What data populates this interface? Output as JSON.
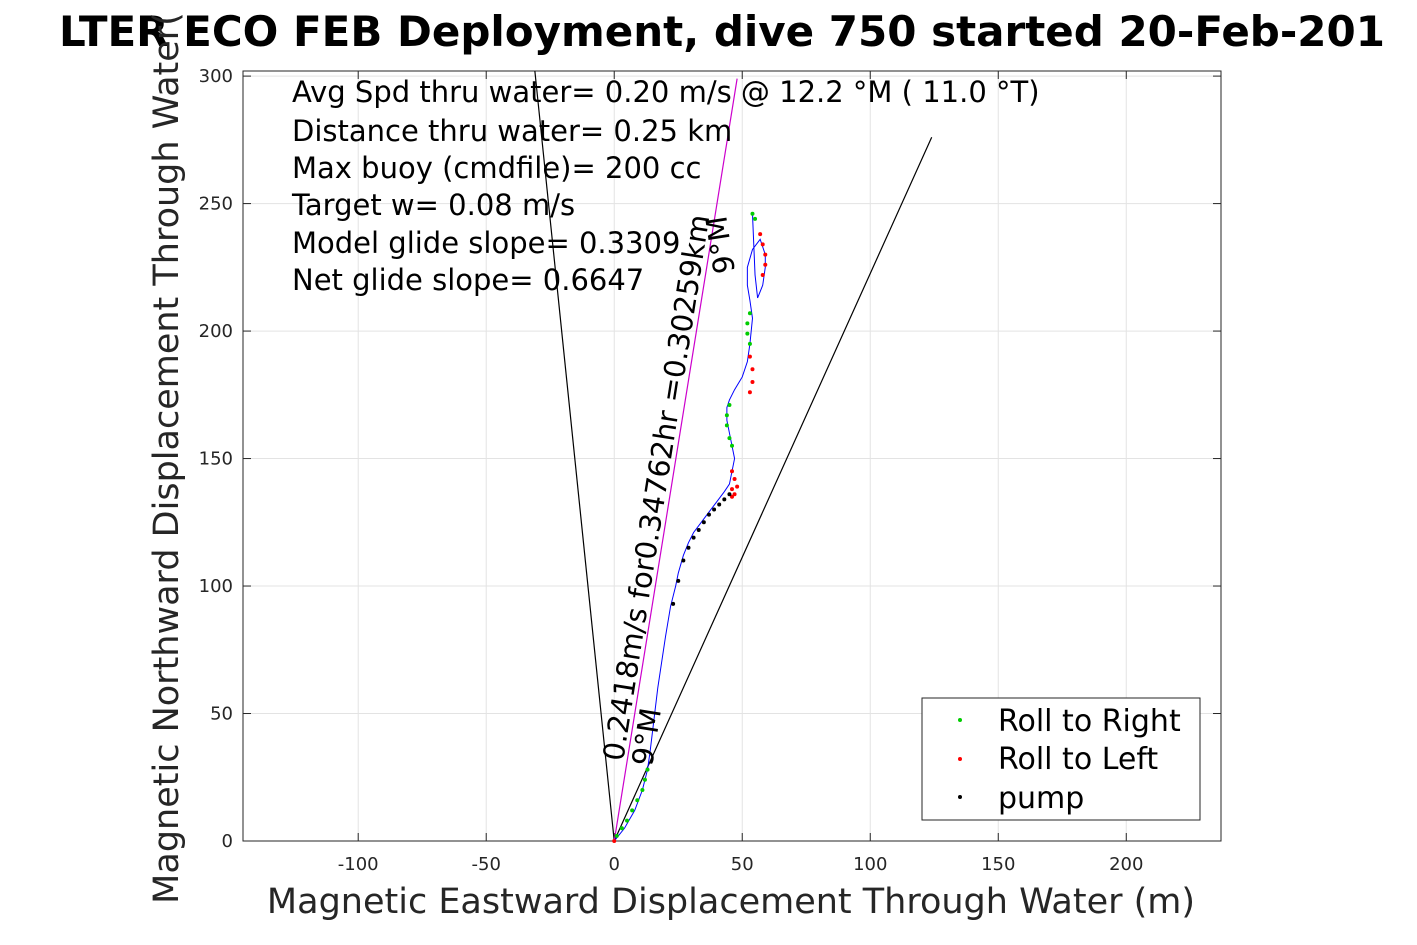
{
  "chart_data": {
    "type": "scatter",
    "title": "LTER ECO FEB Deployment, dive 750 started 20-Feb-201",
    "xlabel": "Magnetic Eastward Displacement Through Water (m)",
    "ylabel": "Magnetic Northward Displacement Through Water(",
    "xlim": [
      -145,
      237
    ],
    "ylim": [
      0,
      302
    ],
    "xticks": [
      -100,
      -50,
      0,
      50,
      100,
      150,
      200
    ],
    "yticks": [
      0,
      50,
      100,
      150,
      200,
      250,
      300
    ],
    "xtick_labels": [
      "-100",
      "-50",
      "0",
      "50",
      "100",
      "150",
      "200"
    ],
    "ytick_labels": [
      "0",
      "50",
      "100",
      "150",
      "200",
      "250",
      "300"
    ],
    "grid": true,
    "annotations": [
      "Avg Spd thru water=  0.20 m/s @  12.2 °M ( 11.0 °T)",
      "Distance thru water=  0.25 km",
      "Max buoy (cmdfile)= 200 cc",
      "Target w= 0.08 m/s",
      "Model glide slope= 0.3309",
      "Net glide slope= 0.6647"
    ],
    "heading_line_labels": [
      "0.2418m/s for0.34762hr =0.30259km",
      "9°M",
      "9°M"
    ],
    "heading_lines": [
      {
        "name": "course",
        "color": "#000000",
        "x": [
          0,
          -31
        ],
        "y": [
          0,
          302
        ]
      },
      {
        "name": "course",
        "color": "#000000",
        "x": [
          0,
          124
        ],
        "y": [
          0,
          276
        ]
      },
      {
        "name": "course",
        "color": "#cc00cc",
        "x": [
          0,
          48
        ],
        "y": [
          0,
          299
        ]
      }
    ],
    "track": {
      "name": "track",
      "color": "#0000ff",
      "x": [
        0,
        4,
        8,
        11,
        13,
        14,
        17,
        20,
        22,
        24,
        25,
        27,
        29,
        31,
        34,
        37,
        40,
        43,
        45,
        46,
        47,
        46,
        45,
        44,
        44,
        45,
        47,
        50,
        52,
        53,
        54,
        53,
        52,
        52,
        54,
        57,
        59,
        59,
        58,
        56,
        55,
        54
      ],
      "y": [
        0,
        5,
        12,
        20,
        28,
        35,
        60,
        80,
        92,
        100,
        105,
        112,
        117,
        121,
        125,
        129,
        133,
        137,
        140,
        145,
        150,
        155,
        160,
        165,
        170,
        173,
        177,
        182,
        188,
        195,
        205,
        212,
        218,
        225,
        232,
        236,
        230,
        225,
        218,
        213,
        222,
        246
      ]
    },
    "series": [
      {
        "name": "Roll to Right",
        "marker": "dot",
        "color": "#00cc00",
        "x": [
          1,
          3,
          5,
          7,
          9,
          11,
          12,
          13,
          45,
          44,
          44,
          45,
          46,
          53,
          52,
          52,
          53,
          54,
          55
        ],
        "y": [
          2,
          5,
          8,
          12,
          16,
          20,
          24,
          28,
          171,
          167,
          163,
          158,
          155,
          207,
          203,
          199,
          195,
          246,
          244
        ]
      },
      {
        "name": "Roll to Left",
        "marker": "dot",
        "color": "#ff0000",
        "x": [
          0,
          46,
          47,
          46,
          46,
          53,
          54,
          54,
          53,
          57,
          58,
          59,
          59,
          58,
          48,
          47
        ],
        "y": [
          0,
          145,
          142,
          138,
          135,
          190,
          185,
          180,
          176,
          238,
          234,
          230,
          226,
          222,
          139,
          136
        ]
      },
      {
        "name": "pump",
        "marker": "dot",
        "color": "#000000",
        "x": [
          23,
          25,
          27,
          29,
          31,
          33,
          35,
          37,
          39,
          41,
          43,
          45
        ],
        "y": [
          93,
          102,
          110,
          115,
          119,
          122,
          125,
          128,
          130,
          132,
          134,
          136
        ]
      }
    ],
    "legend": {
      "position": "bottom-right",
      "entries": [
        "Roll to Right",
        "Roll to Left",
        "pump"
      ]
    }
  }
}
